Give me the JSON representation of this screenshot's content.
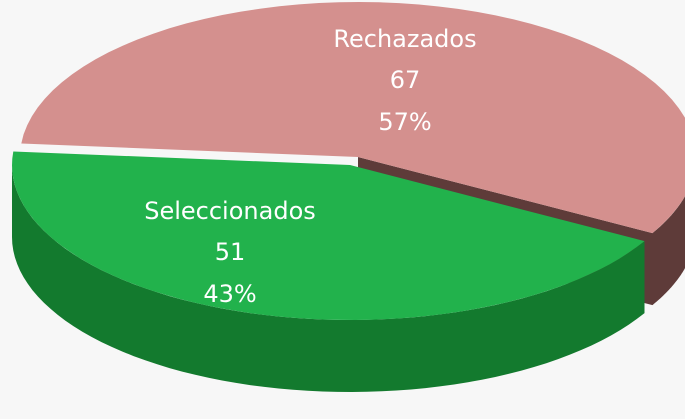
{
  "chart_data": {
    "type": "pie3d",
    "categories": [
      "Rechazados",
      "Seleccionados"
    ],
    "values": [
      67,
      51
    ],
    "percentages": [
      {
        "value": 57,
        "label": "57%"
      },
      {
        "value": 43,
        "label": "43%"
      }
    ],
    "colors": [
      "#d4908e",
      "#22b24c"
    ],
    "side_colors": [
      "#5e3b39",
      "#137a2e"
    ]
  }
}
